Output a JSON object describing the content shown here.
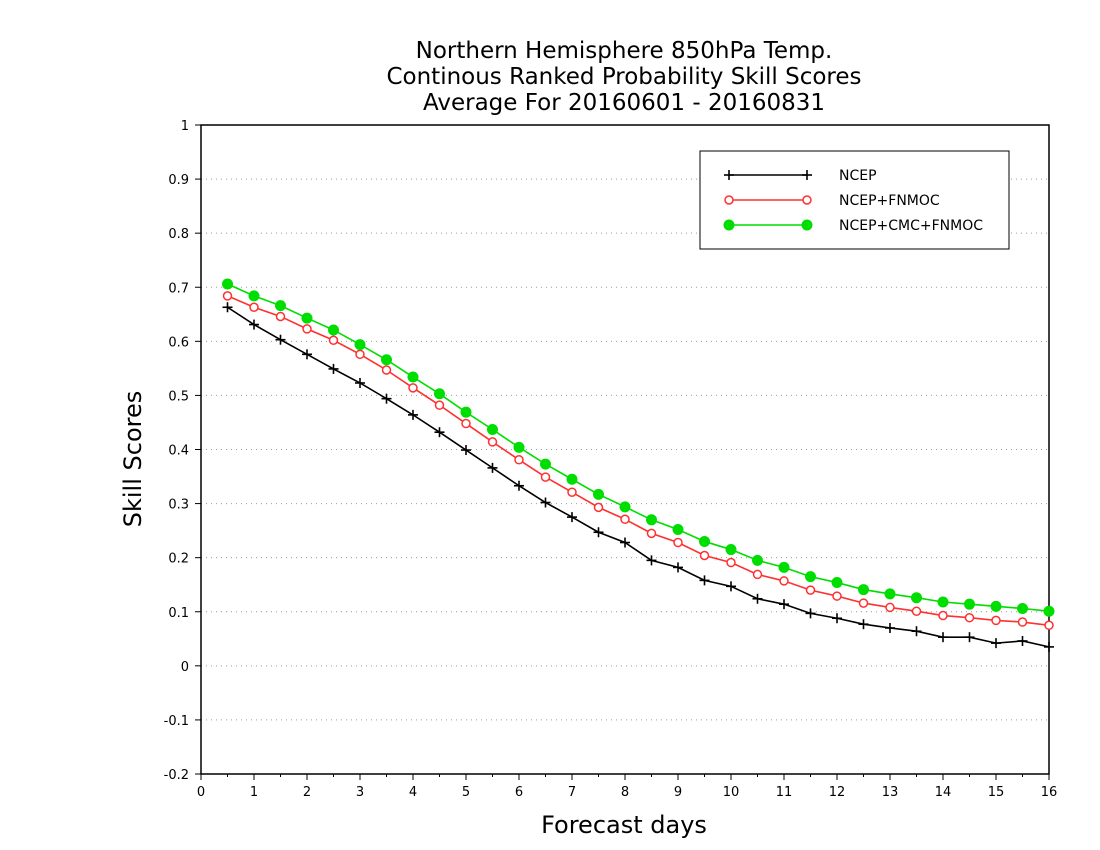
{
  "chart_data": {
    "type": "line",
    "title_lines": [
      "Northern Hemisphere 850hPa Temp.",
      "Continous Ranked Probability Skill Scores",
      "Average For 20160601 - 20160831"
    ],
    "xlabel": "Forecast days",
    "ylabel": "Skill Scores",
    "xlim": [
      0,
      16
    ],
    "ylim": [
      -0.2,
      1
    ],
    "xticks": [
      0,
      1,
      2,
      3,
      4,
      5,
      6,
      7,
      8,
      9,
      10,
      11,
      12,
      13,
      14,
      15,
      16
    ],
    "yticks": [
      -0.2,
      -0.1,
      0,
      0.1,
      0.2,
      0.3,
      0.4,
      0.5,
      0.6,
      0.7,
      0.8,
      0.9,
      1
    ],
    "ytick_labels": [
      "-0.2",
      "-0.1",
      "0",
      "0.1",
      "0.2",
      "0.3",
      "0.4",
      "0.5",
      "0.6",
      "0.7",
      "0.8",
      "0.9",
      "1"
    ],
    "grid": "horizontal dotted",
    "legend_position": "top-right",
    "x": [
      0.5,
      1,
      1.5,
      2,
      2.5,
      3,
      3.5,
      4,
      4.5,
      5,
      5.5,
      6,
      6.5,
      7,
      7.5,
      8,
      8.5,
      9,
      9.5,
      10,
      10.5,
      11,
      11.5,
      12,
      12.5,
      13,
      13.5,
      14,
      14.5,
      15,
      15.5,
      16
    ],
    "series": [
      {
        "name": "NCEP",
        "color": "#000000",
        "marker": "plus",
        "values": [
          0.663,
          0.631,
          0.603,
          0.576,
          0.549,
          0.523,
          0.494,
          0.464,
          0.432,
          0.399,
          0.366,
          0.333,
          0.302,
          0.275,
          0.247,
          0.228,
          0.195,
          0.182,
          0.158,
          0.147,
          0.124,
          0.114,
          0.097,
          0.088,
          0.077,
          0.07,
          0.064,
          0.053,
          0.053,
          0.042,
          0.046,
          0.035
        ]
      },
      {
        "name": "NCEP+FNMOC",
        "color": "#ff3030",
        "marker": "open-circle",
        "values": [
          0.684,
          0.663,
          0.646,
          0.623,
          0.602,
          0.576,
          0.547,
          0.514,
          0.482,
          0.448,
          0.414,
          0.381,
          0.349,
          0.321,
          0.293,
          0.271,
          0.245,
          0.228,
          0.204,
          0.191,
          0.169,
          0.157,
          0.14,
          0.129,
          0.116,
          0.108,
          0.101,
          0.093,
          0.089,
          0.084,
          0.081,
          0.075
        ]
      },
      {
        "name": "NCEP+CMC+FNMOC",
        "color": "#00dd00",
        "marker": "filled-circle",
        "values": [
          0.706,
          0.684,
          0.666,
          0.643,
          0.621,
          0.594,
          0.566,
          0.534,
          0.503,
          0.469,
          0.437,
          0.404,
          0.373,
          0.345,
          0.317,
          0.294,
          0.27,
          0.252,
          0.23,
          0.215,
          0.195,
          0.182,
          0.165,
          0.154,
          0.141,
          0.133,
          0.126,
          0.118,
          0.114,
          0.11,
          0.106,
          0.101
        ]
      }
    ]
  }
}
